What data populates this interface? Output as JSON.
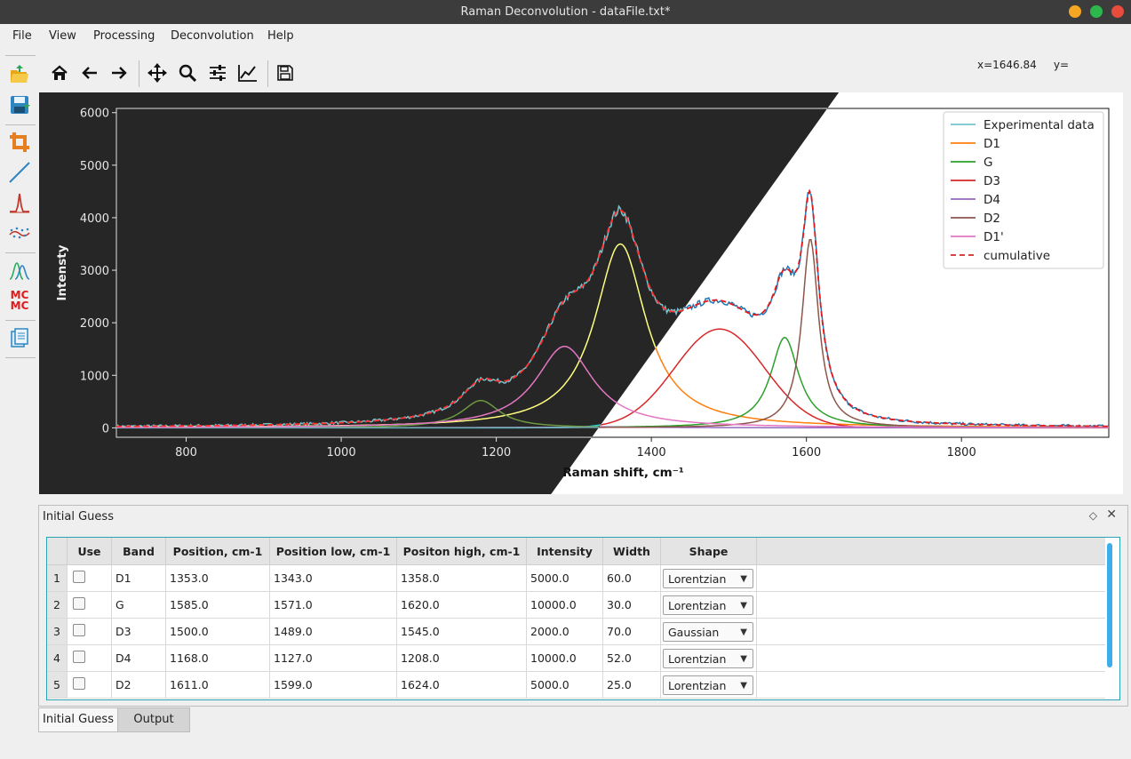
{
  "window": {
    "title": "Raman Deconvolution - dataFile.txt*"
  },
  "menu": [
    "File",
    "View",
    "Processing",
    "Deconvolution",
    "Help"
  ],
  "sidebar_tools": [
    "open-file-icon",
    "save-file-icon",
    "crop-icon",
    "baseline-icon",
    "peak-icon",
    "smoothing-icon",
    "deconvolution-icon",
    "mcmc-icon",
    "batch-icon"
  ],
  "sidebar_mcmc_label": "MC\nMC",
  "toolbar_tools": [
    "home-icon",
    "back-arrow-icon",
    "forward-arrow-icon",
    "pan-icon",
    "zoom-icon",
    "configure-subplots-icon",
    "edit-axis-icon",
    "save-figure-icon"
  ],
  "coords": {
    "x": "x=1646.84",
    "y": "y="
  },
  "chart_data": {
    "type": "line",
    "xlabel": "Raman shift,  cm⁻¹",
    "ylabel": "Intensty",
    "xlim": [
      710,
      1990
    ],
    "ylim": [
      -180,
      6080
    ],
    "xticks": [
      "800",
      "1000",
      "1200",
      "1400",
      "1600",
      "1800"
    ],
    "yticks": [
      "0",
      "1000",
      "2000",
      "3000",
      "4000",
      "5000",
      "6000"
    ],
    "legend_position": "top-right",
    "background_left": "#262626",
    "series": [
      {
        "name": "Experimental data",
        "color": "#74c6cf",
        "dark_color": "#74c6cf",
        "light_color": "#1f77b4",
        "style": "noisy"
      },
      {
        "name": "D1",
        "color": "#ff7f0e",
        "dark_color": "#ffff80",
        "light_color": "#ff7f0e",
        "shape": "lorentzian",
        "center": 1360,
        "amplitude": 3500,
        "hwhm": 40
      },
      {
        "name": "G",
        "color": "#2ca02c",
        "dark_color": "#d080d0",
        "light_color": "#2ca02c",
        "shape": "lorentzian",
        "center": 1572,
        "amplitude": 1720,
        "hwhm": 22
      },
      {
        "name": "D3",
        "color": "#d62728",
        "dark_color": "#29d8d7",
        "light_color": "#d62728",
        "shape": "gaussian",
        "center": 1488,
        "amplitude": 1880,
        "sigma": 58
      },
      {
        "name": "D4",
        "color": "#9467bd",
        "dark_color": "#6b9842",
        "light_color": "#9467bd",
        "shape": "lorentzian",
        "center": 1180,
        "amplitude": 520,
        "hwhm": 30
      },
      {
        "name": "D2",
        "color": "#8c564b",
        "dark_color": "#73a9b4",
        "light_color": "#8c564b",
        "shape": "lorentzian",
        "center": 1605,
        "amplitude": 3600,
        "hwhm": 13
      },
      {
        "name": "D1'",
        "color": "#e377c2",
        "dark_color": "#e377c2",
        "light_color": "#e377c2",
        "shape": "lorentzian",
        "center": 1288,
        "amplitude": 1550,
        "hwhm": 45
      },
      {
        "name": "cumulative",
        "color": "#d62728",
        "dark_color": "#ff3030",
        "light_color": "#e41a1c",
        "style": "dashed"
      }
    ]
  },
  "dock": {
    "title": "Initial Guess",
    "columns": [
      "Use",
      "Band",
      "Position, cm-1",
      "Position low, cm-1",
      "Positon high, cm-1",
      "Intensity",
      "Width",
      "Shape"
    ],
    "rows": [
      {
        "num": "1",
        "band": "D1",
        "pos": "1353.0",
        "low": "1343.0",
        "high": "1358.0",
        "intensity": "5000.0",
        "width": "60.0",
        "shape": "Lorentzian"
      },
      {
        "num": "2",
        "band": "G",
        "pos": "1585.0",
        "low": "1571.0",
        "high": "1620.0",
        "intensity": "10000.0",
        "width": "30.0",
        "shape": "Lorentzian"
      },
      {
        "num": "3",
        "band": "D3",
        "pos": "1500.0",
        "low": "1489.0",
        "high": "1545.0",
        "intensity": "2000.0",
        "width": "70.0",
        "shape": "Gaussian"
      },
      {
        "num": "4",
        "band": "D4",
        "pos": "1168.0",
        "low": "1127.0",
        "high": "1208.0",
        "intensity": "10000.0",
        "width": "52.0",
        "shape": "Lorentzian"
      },
      {
        "num": "5",
        "band": "D2",
        "pos": "1611.0",
        "low": "1599.0",
        "high": "1624.0",
        "intensity": "5000.0",
        "width": "25.0",
        "shape": "Lorentzian"
      }
    ]
  },
  "tabs": [
    "Initial Guess",
    "Output"
  ],
  "colors": {
    "titlebar": "#3c3c3c",
    "accent": "#3daee9",
    "minimize": "#f5a623",
    "maximize": "#2db84d",
    "close": "#e74c3c"
  }
}
